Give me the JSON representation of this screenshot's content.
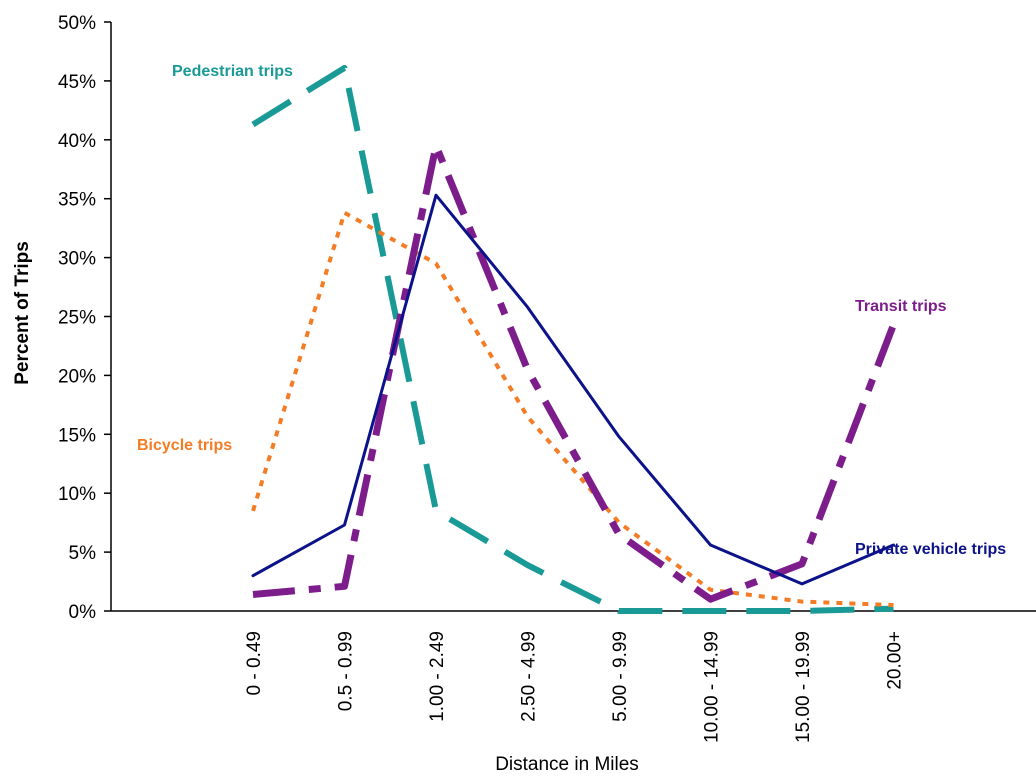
{
  "chart_data": {
    "type": "line",
    "xlabel": "Distance in Miles",
    "ylabel": "Percent of Trips",
    "categories": [
      "0 - 0.49",
      "0.5 - 0.99",
      "1.00 - 2.49",
      "2.50 - 4.99",
      "5.00 - 9.99",
      "10.00 - 14.99",
      "15.00 - 19.99",
      "20.00+"
    ],
    "yticks": [
      "0%",
      "5%",
      "10%",
      "15%",
      "20%",
      "25%",
      "30%",
      "35%",
      "40%",
      "45%",
      "50%"
    ],
    "ylim": [
      0,
      50
    ],
    "grid": false,
    "legend": "inline labels",
    "series": [
      {
        "name": "Pedestrian trips",
        "color": "#1a9a96",
        "style": "long-dash",
        "values": [
          41.3,
          46.1,
          8.5,
          3.9,
          0.0,
          0.0,
          0.0,
          0.2
        ]
      },
      {
        "name": "Bicycle trips",
        "color": "#f47c25",
        "style": "dotted",
        "values": [
          8.5,
          33.8,
          29.5,
          16.5,
          7.5,
          1.8,
          0.8,
          0.5
        ]
      },
      {
        "name": "Transit trips",
        "color": "#7d1d8c",
        "style": "dash-dot",
        "values": [
          1.4,
          2.1,
          39.5,
          20.5,
          6.5,
          1.0,
          4.0,
          24.3
        ]
      },
      {
        "name": "Private vehicle trips",
        "color": "#0c128a",
        "style": "solid",
        "values": [
          3.0,
          7.3,
          35.3,
          25.8,
          14.8,
          5.6,
          2.3,
          5.6
        ]
      }
    ]
  }
}
